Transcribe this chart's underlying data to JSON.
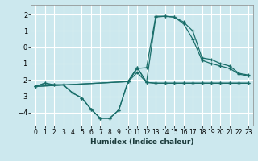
{
  "xlabel": "Humidex (Indice chaleur)",
  "bg_color": "#cce8ee",
  "grid_color": "#ffffff",
  "line_color": "#1a6e6a",
  "xlim": [
    -0.5,
    23.5
  ],
  "ylim": [
    -4.8,
    2.6
  ],
  "x_ticks": [
    0,
    1,
    2,
    3,
    4,
    5,
    6,
    7,
    8,
    9,
    10,
    11,
    12,
    13,
    14,
    15,
    16,
    17,
    18,
    19,
    20,
    21,
    22,
    23
  ],
  "y_ticks": [
    -4,
    -3,
    -2,
    -1,
    0,
    1,
    2
  ],
  "series1_x": [
    0,
    1,
    2,
    3,
    4,
    5,
    6,
    7,
    8,
    9,
    10,
    11,
    12,
    13,
    14,
    15,
    16,
    17,
    18,
    19,
    20,
    21,
    22,
    23
  ],
  "series1_y": [
    -2.4,
    -2.2,
    -2.3,
    -2.3,
    -2.8,
    -3.1,
    -3.8,
    -4.35,
    -4.35,
    -3.85,
    -2.1,
    -1.25,
    -2.15,
    -2.2,
    -2.2,
    -2.2,
    -2.2,
    -2.2,
    -2.2,
    -2.2,
    -2.2,
    -2.2,
    -2.2,
    -2.2
  ],
  "series2_x": [
    0,
    1,
    2,
    3,
    4,
    5,
    6,
    7,
    8,
    9,
    10,
    11,
    12,
    13,
    14,
    15,
    16,
    17,
    18,
    19,
    20,
    21,
    22,
    23
  ],
  "series2_y": [
    -2.4,
    -2.2,
    -2.3,
    -2.3,
    -2.8,
    -3.1,
    -3.8,
    -4.35,
    -4.35,
    -3.85,
    -2.1,
    -1.25,
    -2.15,
    -2.2,
    -2.2,
    -2.2,
    -2.2,
    -2.2,
    -2.2,
    -2.2,
    -2.2,
    -2.2,
    -2.2,
    -2.2
  ],
  "series3_x": [
    0,
    10,
    11,
    12,
    13,
    14,
    15,
    16,
    17,
    18,
    19,
    20,
    21,
    22,
    23
  ],
  "series3_y": [
    -2.4,
    -2.1,
    -1.3,
    -1.25,
    1.9,
    1.9,
    1.85,
    1.55,
    1.0,
    -0.65,
    -0.75,
    -1.0,
    -1.15,
    -1.6,
    -1.7
  ],
  "series4_x": [
    0,
    10,
    11,
    12,
    13,
    14,
    15,
    16,
    17,
    18,
    19,
    20,
    21,
    22,
    23
  ],
  "series4_y": [
    -2.4,
    -2.1,
    -1.55,
    -2.15,
    1.85,
    1.9,
    1.85,
    1.45,
    0.5,
    -0.8,
    -1.0,
    -1.15,
    -1.3,
    -1.65,
    -1.75
  ]
}
